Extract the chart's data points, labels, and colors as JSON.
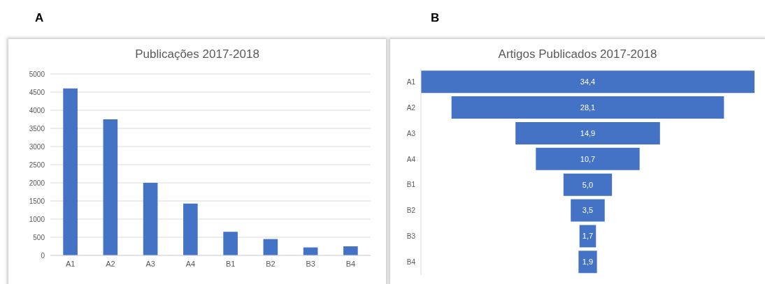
{
  "chart_data": [
    {
      "type": "bar",
      "title": "Publicações 2017-2018",
      "annotations": [
        "A"
      ],
      "categories": [
        "A1",
        "A2",
        "A3",
        "A4",
        "B1",
        "B2",
        "B3",
        "B4"
      ],
      "values": [
        4600,
        3750,
        2000,
        1430,
        650,
        450,
        220,
        250
      ],
      "color": "#4472c4",
      "ylim": [
        0,
        5000
      ],
      "yticks": [
        0,
        500,
        1000,
        1500,
        2000,
        2500,
        3000,
        3500,
        4000,
        4500,
        5000
      ],
      "grid": "y"
    },
    {
      "type": "other",
      "title": "Artigos Publicados 2017-2018",
      "annotations": [
        "B"
      ],
      "categories": [
        "A1",
        "A2",
        "A3",
        "A4",
        "B1",
        "B2",
        "B3",
        "B4"
      ],
      "values": [
        34.4,
        28.1,
        14.9,
        10.7,
        5.0,
        3.5,
        1.7,
        1.9
      ],
      "value_labels": [
        "34,4",
        "28,1",
        "14,9",
        "10,7",
        "5,0",
        "3,5",
        "1,7",
        "1,9"
      ],
      "color": "#4472c4"
    }
  ]
}
